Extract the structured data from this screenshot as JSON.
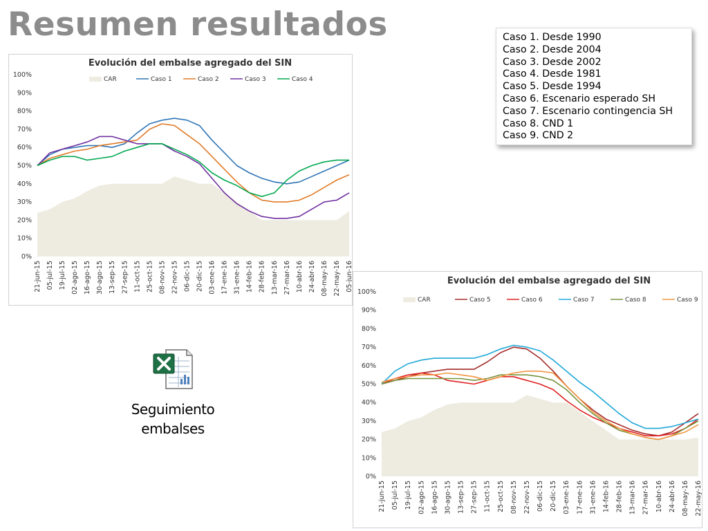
{
  "page": {
    "title": "Resumen resultados"
  },
  "cases_legend": [
    "Caso 1. Desde 1990",
    "Caso 2. Desde 2004",
    "Caso 3. Desde 2002",
    "Caso 4. Desde 1981",
    "Caso 5. Desde 1994",
    "Caso 6. Escenario esperado SH",
    "Caso 7. Escenario contingencia SH",
    "Caso 8. CND 1",
    "Caso 9. CND 2"
  ],
  "excel_link": {
    "label_line1": "Seguimiento",
    "label_line2": "embalses",
    "icon": "excel-file-icon"
  },
  "chart_data": [
    {
      "type": "line",
      "title": "Evolución del embalse agregado del SIN",
      "categories": [
        "21-jun-15",
        "05-jul-15",
        "19-jul-15",
        "02-ago-15",
        "16-ago-15",
        "30-ago-15",
        "13-sep-15",
        "27-sep-15",
        "11-oct-15",
        "25-oct-15",
        "08-nov-15",
        "22-nov-15",
        "06-dic-15",
        "20-dic-15",
        "03-ene-16",
        "17-ene-16",
        "31-ene-16",
        "14-feb-16",
        "28-feb-16",
        "13-mar-16",
        "27-mar-16",
        "10-abr-16",
        "24-abr-16",
        "08-may-16",
        "22-may-16",
        "05-jun-16"
      ],
      "ylim": [
        0,
        100
      ],
      "yticks": [
        "0%",
        "10%",
        "20%",
        "30%",
        "40%",
        "50%",
        "60%",
        "70%",
        "80%",
        "90%",
        "100%"
      ],
      "legend_position": "top",
      "series": [
        {
          "name": "CAR",
          "kind": "area",
          "color": "#eeece1",
          "values": [
            24,
            26,
            30,
            32,
            36,
            39,
            40,
            40,
            40,
            40,
            40,
            44,
            42,
            40,
            40,
            35,
            30,
            25,
            20,
            20,
            20,
            20,
            20,
            20,
            20,
            25
          ]
        },
        {
          "name": "Caso 1",
          "color": "#2e75b6",
          "values": [
            50,
            56,
            59,
            60,
            61,
            61,
            60,
            62,
            68,
            73,
            75,
            76,
            75,
            72,
            64,
            57,
            50,
            46,
            43,
            41,
            40,
            41,
            44,
            47,
            50,
            53
          ]
        },
        {
          "name": "Caso 2",
          "color": "#e07b28",
          "values": [
            50,
            54,
            56,
            58,
            59,
            61,
            62,
            63,
            64,
            70,
            73,
            72,
            67,
            62,
            55,
            48,
            41,
            35,
            31,
            30,
            30,
            31,
            34,
            38,
            42,
            45
          ]
        },
        {
          "name": "Caso 3",
          "color": "#7030a0",
          "values": [
            50,
            57,
            59,
            61,
            63,
            66,
            66,
            64,
            62,
            62,
            62,
            58,
            55,
            51,
            43,
            35,
            29,
            25,
            22,
            21,
            21,
            22,
            26,
            30,
            31,
            35
          ]
        },
        {
          "name": "Caso 4",
          "color": "#00a84f",
          "values": [
            50,
            53,
            55,
            55,
            53,
            54,
            55,
            58,
            60,
            62,
            62,
            59,
            56,
            52,
            46,
            42,
            39,
            35,
            33,
            35,
            42,
            47,
            50,
            52,
            53,
            53
          ]
        }
      ]
    },
    {
      "type": "line",
      "title": "Evolución del embalse agregado del SIN",
      "categories": [
        "21-jun-15",
        "05-jul-15",
        "19-jul-15",
        "02-ago-15",
        "16-ago-15",
        "30-ago-15",
        "13-sep-15",
        "27-sep-15",
        "11-oct-15",
        "25-oct-15",
        "08-nov-15",
        "22-nov-15",
        "06-dic-15",
        "20-dic-15",
        "03-ene-16",
        "17-ene-16",
        "31-ene-16",
        "14-feb-16",
        "28-feb-16",
        "13-mar-16",
        "27-mar-16",
        "10-abr-16",
        "24-abr-16",
        "08-may-16",
        "22-may-16"
      ],
      "ylim": [
        0,
        100
      ],
      "yticks": [
        "0%",
        "10%",
        "20%",
        "30%",
        "40%",
        "50%",
        "60%",
        "70%",
        "80%",
        "90%",
        "100%"
      ],
      "legend_position": "top",
      "series": [
        {
          "name": "CAR",
          "kind": "area",
          "color": "#eeece1",
          "values": [
            24,
            26,
            30,
            32,
            36,
            39,
            40,
            40,
            40,
            40,
            40,
            44,
            42,
            40,
            40,
            35,
            30,
            25,
            20,
            20,
            20,
            20,
            20,
            20,
            21
          ]
        },
        {
          "name": "Caso 5",
          "color": "#a52a2a",
          "values": [
            50,
            52,
            54,
            56,
            57,
            58,
            58,
            58,
            62,
            67,
            70,
            69,
            64,
            57,
            49,
            42,
            36,
            31,
            28,
            25,
            23,
            22,
            24,
            29,
            34
          ]
        },
        {
          "name": "Caso 6",
          "color": "#e02020",
          "values": [
            50,
            53,
            55,
            56,
            55,
            52,
            51,
            50,
            52,
            54,
            54,
            52,
            50,
            47,
            41,
            36,
            32,
            29,
            26,
            24,
            22,
            22,
            23,
            26,
            31
          ]
        },
        {
          "name": "Caso 7",
          "color": "#1fa8d8",
          "values": [
            50,
            57,
            61,
            63,
            64,
            64,
            64,
            64,
            66,
            69,
            71,
            70,
            68,
            63,
            57,
            51,
            46,
            40,
            34,
            29,
            26,
            26,
            27,
            29,
            31
          ]
        },
        {
          "name": "Caso 8",
          "color": "#77933c",
          "values": [
            50,
            52,
            53,
            53,
            53,
            53,
            53,
            52,
            53,
            55,
            55,
            55,
            54,
            52,
            47,
            40,
            34,
            29,
            25,
            23,
            21,
            20,
            22,
            26,
            30
          ]
        },
        {
          "name": "Caso 9",
          "color": "#f19540",
          "values": [
            51,
            53,
            54,
            55,
            55,
            56,
            55,
            54,
            52,
            54,
            56,
            57,
            57,
            56,
            49,
            42,
            35,
            30,
            26,
            23,
            21,
            20,
            22,
            24,
            28
          ]
        }
      ]
    }
  ]
}
